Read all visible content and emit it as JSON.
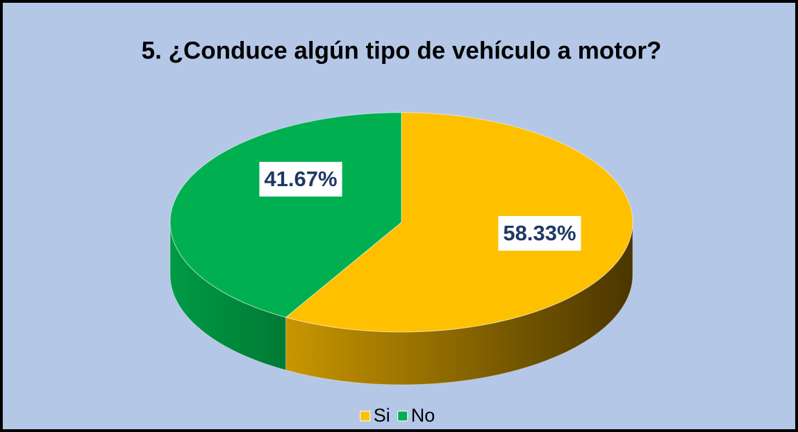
{
  "chart_data": {
    "type": "pie",
    "title": "5. ¿Conduce algún tipo de vehículo a motor?",
    "categories": [
      "Si",
      "No"
    ],
    "values": [
      58.33,
      41.67
    ],
    "value_labels": [
      "58.33%",
      "41.67%"
    ],
    "colors": [
      "#ffc000",
      "#00b050"
    ],
    "legend": "bottom"
  }
}
